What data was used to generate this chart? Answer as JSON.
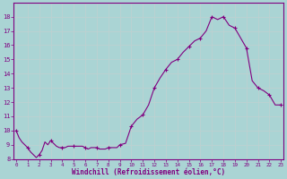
{
  "hours": [
    0,
    0.25,
    0.5,
    0.75,
    1.0,
    1.25,
    1.5,
    1.75,
    2.0,
    2.25,
    2.5,
    2.75,
    3.0,
    3.25,
    3.5,
    3.75,
    4.0,
    4.25,
    4.5,
    4.75,
    5.0,
    5.25,
    5.5,
    5.75,
    6.0,
    6.25,
    6.5,
    6.75,
    7.0,
    7.25,
    7.5,
    7.75,
    8.0,
    8.25,
    8.5,
    8.75,
    9.0,
    9.5,
    10.0,
    10.5,
    11.0,
    11.5,
    12.0,
    12.5,
    13.0,
    13.5,
    14.0,
    14.5,
    15.0,
    15.5,
    16.0,
    16.5,
    17.0,
    17.5,
    18.0,
    18.5,
    19.0,
    19.5,
    20.0,
    20.5,
    21.0,
    21.5,
    22.0,
    22.5,
    23.0
  ],
  "values": [
    10.0,
    9.5,
    9.2,
    9.0,
    8.8,
    8.5,
    8.3,
    8.1,
    8.3,
    8.6,
    9.2,
    9.0,
    9.3,
    9.1,
    8.9,
    8.8,
    8.8,
    8.8,
    8.9,
    8.9,
    8.9,
    8.9,
    8.9,
    8.9,
    8.8,
    8.7,
    8.8,
    8.8,
    8.8,
    8.7,
    8.7,
    8.7,
    8.8,
    8.8,
    8.8,
    8.8,
    9.0,
    9.1,
    10.3,
    10.8,
    11.1,
    11.8,
    13.0,
    13.7,
    14.3,
    14.8,
    15.0,
    15.5,
    15.9,
    16.3,
    16.5,
    17.0,
    18.0,
    17.8,
    18.0,
    17.4,
    17.2,
    16.5,
    15.8,
    13.5,
    13.0,
    12.8,
    12.5,
    11.8,
    11.8
  ],
  "marker_hours": [
    0,
    1,
    2,
    3,
    4,
    5,
    6,
    7,
    8,
    9,
    10,
    11,
    12,
    13,
    14,
    15,
    16,
    17,
    18,
    19,
    20,
    21,
    22,
    23
  ],
  "marker_values": [
    10.0,
    8.8,
    8.3,
    9.3,
    8.8,
    8.9,
    8.8,
    8.8,
    8.8,
    9.0,
    10.3,
    11.1,
    13.0,
    14.3,
    15.0,
    15.9,
    16.5,
    18.0,
    18.0,
    17.2,
    15.8,
    13.0,
    12.5,
    11.8
  ],
  "line_color": "#800080",
  "marker_color": "#800080",
  "bg_color": "#aad4d4",
  "grid_color": "#c0d0d0",
  "xlabel": "Windchill (Refroidissement éolien,°C)",
  "ylabel": "",
  "ylim": [
    8,
    19
  ],
  "xlim": [
    -0.2,
    23.2
  ],
  "yticks": [
    8,
    9,
    10,
    11,
    12,
    13,
    14,
    15,
    16,
    17,
    18
  ],
  "xticks": [
    0,
    1,
    2,
    3,
    4,
    5,
    6,
    7,
    8,
    9,
    10,
    11,
    12,
    13,
    14,
    15,
    16,
    17,
    18,
    19,
    20,
    21,
    22,
    23
  ],
  "axis_color": "#800080",
  "tick_color": "#800080",
  "label_color": "#800080",
  "line_width": 0.8,
  "marker_size": 2.5
}
